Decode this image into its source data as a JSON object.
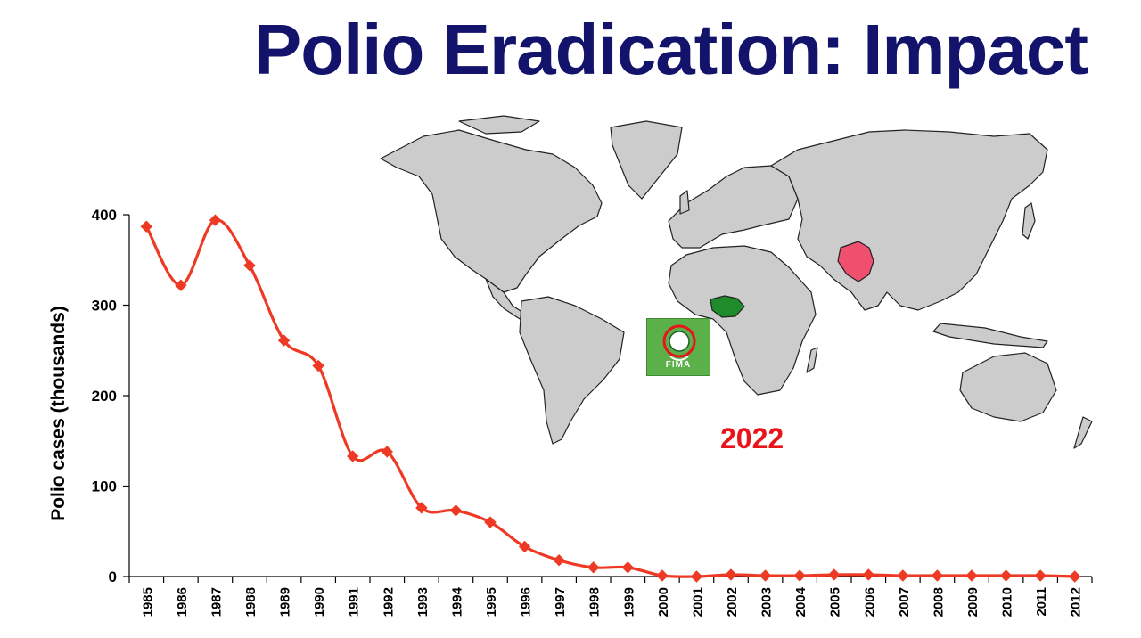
{
  "slide": {
    "title": "Polio Eradication: Impact",
    "map_year": "2022",
    "badge_text": "FIMA"
  },
  "colors": {
    "title": "#13136b",
    "series": "#ee3a24",
    "land": "#cccccc",
    "endemic_asia": "#f0506e",
    "endemic_africa": "#1e8c2a",
    "year_label": "#e8141b"
  },
  "chart_data": {
    "type": "line",
    "title": "",
    "xlabel": "",
    "ylabel": "Polio cases (thousands)",
    "ylim": [
      0,
      400
    ],
    "yticks": [
      0,
      100,
      200,
      300,
      400
    ],
    "grid": false,
    "categories": [
      "1985",
      "1986",
      "1987",
      "1988",
      "1989",
      "1990",
      "1991",
      "1992",
      "1993",
      "1994",
      "1995",
      "1996",
      "1997",
      "1998",
      "1999",
      "2000",
      "2001",
      "2002",
      "2003",
      "2004",
      "2005",
      "2006",
      "2007",
      "2008",
      "2009",
      "2010",
      "2011",
      "2012"
    ],
    "series": [
      {
        "values": [
          387,
          322,
          394,
          344,
          261,
          233,
          133,
          138,
          76,
          73,
          60,
          33,
          18,
          10,
          10,
          1,
          0,
          2,
          1,
          1,
          2,
          2,
          1,
          1,
          1,
          1,
          1,
          0
        ]
      }
    ]
  }
}
